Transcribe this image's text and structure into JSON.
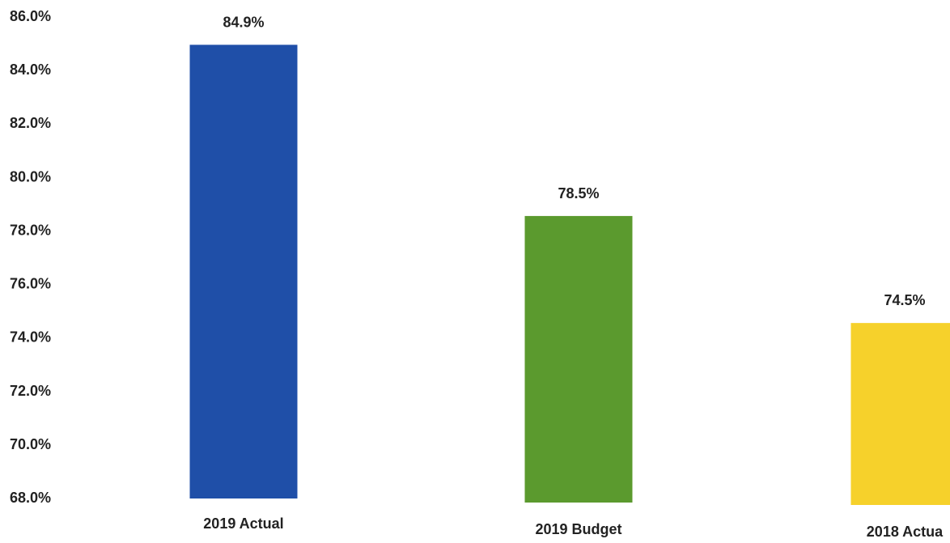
{
  "chart_data": {
    "type": "bar",
    "categories": [
      "2019 Actual",
      "2019 Budget",
      "2018 Actua"
    ],
    "values": [
      84.9,
      78.5,
      74.5
    ],
    "value_labels": [
      "84.9%",
      "78.5%",
      "74.5%"
    ],
    "colors": [
      "#1f4fa8",
      "#5b9a2e",
      "#f6d12b"
    ],
    "ylim": [
      68.0,
      86.0
    ],
    "yticks": [
      86.0,
      84.0,
      82.0,
      80.0,
      78.0,
      76.0,
      74.0,
      72.0,
      70.0,
      68.0
    ],
    "ytick_labels": [
      "86.0%",
      "84.0%",
      "82.0%",
      "80.0%",
      "78.0%",
      "76.0%",
      "74.0%",
      "72.0%",
      "70.0%",
      "68.0%"
    ],
    "title": "",
    "xlabel": "",
    "ylabel": "",
    "grid": false,
    "legend": false
  }
}
